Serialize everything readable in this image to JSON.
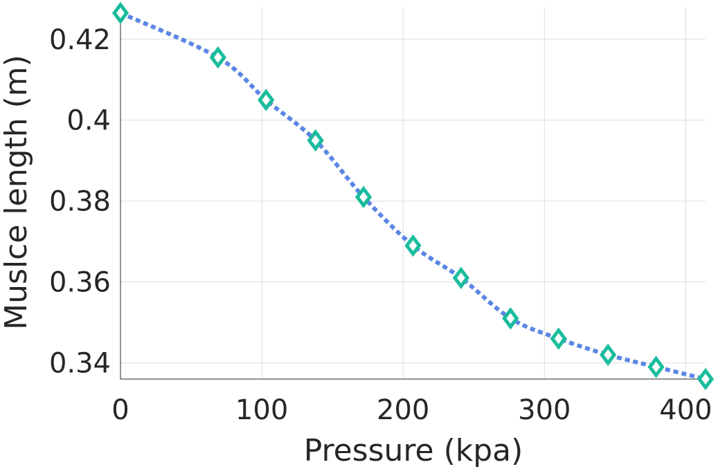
{
  "chart_data": {
    "type": "line",
    "title": "",
    "xlabel": "Pressure (kpa)",
    "ylabel": "Muslce length (m)",
    "xlim": [
      0,
      414
    ],
    "ylim": [
      0.336,
      0.428
    ],
    "xticks": [
      0,
      100,
      200,
      300,
      400
    ],
    "yticks": [
      0.34,
      0.36,
      0.38,
      0.4,
      0.42
    ],
    "xtick_labels": [
      "0",
      "100",
      "200",
      "300",
      "400"
    ],
    "ytick_labels": [
      "0.34",
      "0.36",
      "0.38",
      "0.4",
      "0.42"
    ],
    "grid": true,
    "series": [
      {
        "line_color": "#5b86e5",
        "marker_color": "#1abc9c",
        "marker": "diamond",
        "x": [
          0,
          69,
          103,
          138,
          172,
          207,
          241,
          276,
          310,
          345,
          379,
          414
        ],
        "y": [
          0.4265,
          0.4155,
          0.405,
          0.395,
          0.381,
          0.369,
          0.361,
          0.351,
          0.346,
          0.342,
          0.339,
          0.336
        ]
      }
    ]
  }
}
